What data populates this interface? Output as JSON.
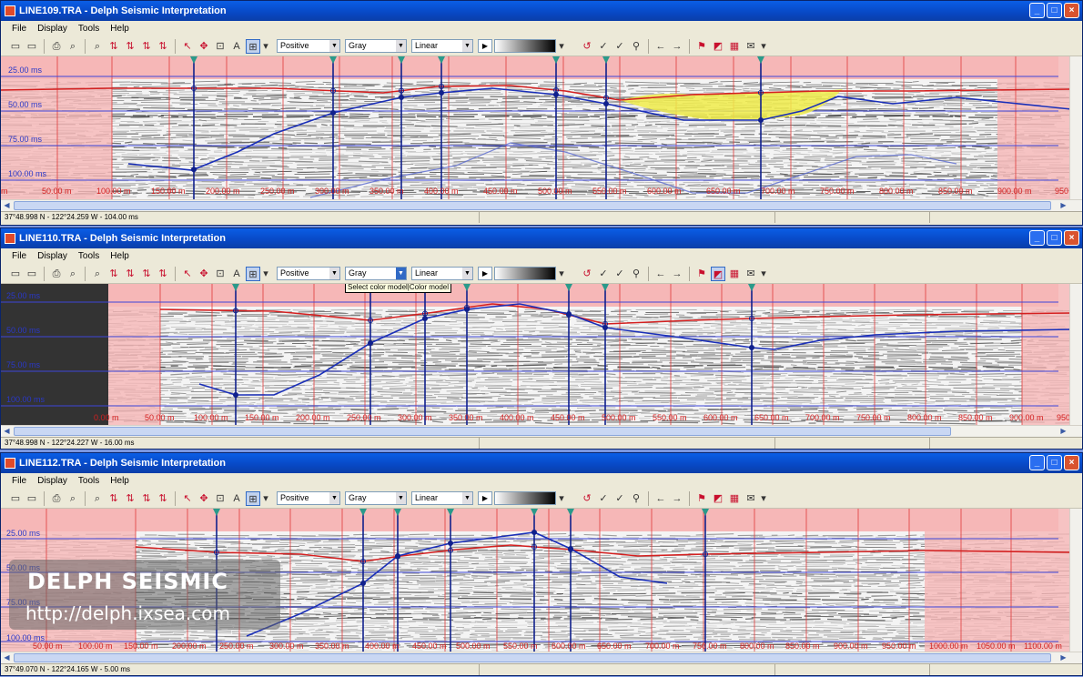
{
  "windows": [
    {
      "title": "LINE109.TRA - Delph Seismic Interpretation",
      "menu": [
        "File",
        "Display",
        "Tools",
        "Help"
      ],
      "polarity": "Positive",
      "color_model": "Gray",
      "scale": "Linear",
      "status": "37°48.998 N - 122°24.259 W - 104.00 ms",
      "time_labels": [
        "25.00 ms",
        "50.00 ms",
        "75.00 ms",
        "100.00 ms"
      ],
      "dist_labels": [
        "m",
        "50.00 m",
        "100.00 m",
        "150.00 m",
        "200.00 m",
        "250.00 m",
        "300.00 m",
        "350.00 m",
        "400.00 m",
        "450.00 m",
        "500.00 m",
        "550.00 m",
        "600.00 m",
        "650.00 m",
        "700.00 m",
        "750.00 m",
        "800.00 m",
        "850.00 m",
        "900.00 m",
        "950"
      ]
    },
    {
      "title": "LINE110.TRA - Delph Seismic Interpretation",
      "menu": [
        "File",
        "Display",
        "Tools",
        "Help"
      ],
      "polarity": "Positive",
      "color_model": "Gray",
      "scale": "Linear",
      "tooltip": "Select color model|Color model",
      "status": "37°48.998 N - 122°24.227 W - 16.00 ms",
      "time_labels": [
        "25.00 ms",
        "50.00 ms",
        "75.00 ms",
        "100.00 ms"
      ],
      "dist_labels": [
        "0.00 m",
        "50.00 m",
        "100.00 m",
        "150.00 m",
        "200.00 m",
        "250.00 m",
        "300.00 m",
        "350.00 m",
        "400.00 m",
        "450.00 m",
        "500.00 m",
        "550.00 m",
        "600.00 m",
        "650.00 m",
        "700.00 m",
        "750.00 m",
        "800.00 m",
        "850.00 m",
        "900.00 m",
        "950"
      ]
    },
    {
      "title": "LINE112.TRA - Delph Seismic Interpretation",
      "menu": [
        "File",
        "Display",
        "Tools",
        "Help"
      ],
      "polarity": "Positive",
      "color_model": "Gray",
      "scale": "Linear",
      "status": "37°49.070 N - 122°24.165 W - 5.00 ms",
      "time_labels": [
        "25.00 ms",
        "50.00 ms",
        "75.00 ms",
        "100.00 ms"
      ],
      "dist_labels": [
        "50.00 m",
        "100.00 m",
        "150.00 m",
        "200.00 m",
        "250.00 m",
        "300.00 m",
        "350.00 m",
        "400.00 m",
        "450.00 m",
        "500.00 m",
        "550.00 m",
        "600.00 m",
        "650.00 m",
        "700.00 m",
        "750.00 m",
        "800.00 m",
        "850.00 m",
        "900.00 m",
        "950.00 m",
        "1000.00 m",
        "1050.00 m",
        "1100.00 m"
      ]
    }
  ],
  "watermark": {
    "brand": "DELPH SEISMIC",
    "url": "http://delph.ixsea.com"
  },
  "colors": {
    "horizon_red": "#d42020",
    "horizon_blue": "#1a2fb8",
    "fill_yellow": "#f0ec4a",
    "mask_pink": "#f6b7b7",
    "grid_red": "#e03a3a",
    "grid_blue": "#3d46d8"
  }
}
